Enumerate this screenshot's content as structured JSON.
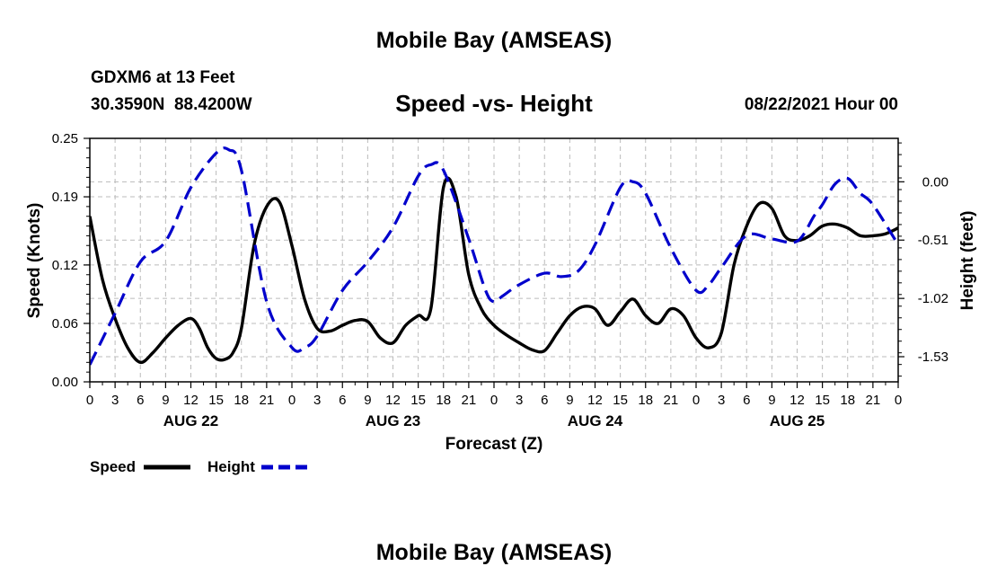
{
  "page_title_top": "Mobile Bay (AMSEAS)",
  "page_title_bottom": "Mobile Bay (AMSEAS)",
  "station": "GDXM6 at 13 Feet",
  "coords": "30.3590N  88.4200W",
  "date_label": "08/22/2021 Hour 00",
  "legend": {
    "speed_label": "Speed",
    "height_label": "Height"
  },
  "colors": {
    "speed": "#000000",
    "height": "#0000cc",
    "grid": "#bbbbbb"
  },
  "chart_data": {
    "type": "line",
    "title": "Speed -vs- Height",
    "xlabel": "Forecast (Z)",
    "ylabel": "Speed (Knots)",
    "y2label": "Height (feet)",
    "xlim": [
      0,
      96
    ],
    "ylim": [
      0,
      0.25
    ],
    "y2lim": [
      -1.75,
      0.38
    ],
    "x_ticks": [
      0,
      3,
      6,
      9,
      12,
      15,
      18,
      21,
      24,
      27,
      30,
      33,
      36,
      39,
      42,
      45,
      48,
      51,
      54,
      57,
      60,
      63,
      66,
      69,
      72,
      75,
      78,
      81,
      84,
      87,
      90,
      93,
      96
    ],
    "x_tick_labels": [
      "0",
      "3",
      "6",
      "9",
      "12",
      "15",
      "18",
      "21",
      "0",
      "3",
      "6",
      "9",
      "12",
      "15",
      "18",
      "21",
      "0",
      "3",
      "6",
      "9",
      "12",
      "15",
      "18",
      "21",
      "0",
      "3",
      "6",
      "9",
      "12",
      "15",
      "18",
      "21",
      "0"
    ],
    "day_labels": [
      {
        "x": 12,
        "label": "AUG 22"
      },
      {
        "x": 36,
        "label": "AUG 23"
      },
      {
        "x": 60,
        "label": "AUG 24"
      },
      {
        "x": 84,
        "label": "AUG 25"
      }
    ],
    "y_ticks": [
      0.0,
      0.06,
      0.12,
      0.19,
      0.25
    ],
    "y_tick_labels": [
      "0.00",
      "0.06",
      "0.12",
      "0.19",
      "0.25"
    ],
    "y2_ticks": [
      -1.53,
      -1.02,
      -0.51,
      0.0
    ],
    "y2_tick_labels": [
      "-1.53",
      "-1.02",
      "-0.51",
      "0.00"
    ],
    "grid": true,
    "series": [
      {
        "name": "Speed",
        "axis": "left",
        "style": "solid",
        "x": [
          0,
          1.5,
          3,
          4.5,
          6,
          7.5,
          9,
          10.5,
          12,
          13,
          14,
          15,
          16,
          17,
          18,
          19.5,
          21,
          22.5,
          24,
          25.5,
          27,
          28.5,
          30,
          31.5,
          33,
          34.5,
          36,
          37.5,
          39,
          40.5,
          42,
          43.5,
          45,
          46.5,
          48,
          49.5,
          51,
          52.5,
          54,
          55.5,
          57,
          58.5,
          60,
          61.5,
          63,
          64.5,
          66,
          67.5,
          69,
          70.5,
          72,
          73.5,
          75,
          76.5,
          78,
          79.5,
          81,
          82.5,
          84,
          85.5,
          87,
          88.5,
          90,
          91.5,
          93,
          94.5,
          96
        ],
        "values": [
          0.17,
          0.105,
          0.065,
          0.035,
          0.02,
          0.03,
          0.045,
          0.058,
          0.065,
          0.055,
          0.035,
          0.024,
          0.023,
          0.03,
          0.055,
          0.14,
          0.18,
          0.185,
          0.14,
          0.085,
          0.055,
          0.052,
          0.058,
          0.063,
          0.062,
          0.045,
          0.04,
          0.058,
          0.068,
          0.075,
          0.2,
          0.19,
          0.11,
          0.075,
          0.058,
          0.048,
          0.04,
          0.033,
          0.032,
          0.05,
          0.068,
          0.077,
          0.075,
          0.058,
          0.072,
          0.085,
          0.068,
          0.06,
          0.075,
          0.068,
          0.045,
          0.035,
          0.05,
          0.12,
          0.16,
          0.183,
          0.178,
          0.15,
          0.145,
          0.15,
          0.16,
          0.162,
          0.158,
          0.15,
          0.15,
          0.152,
          0.158
        ]
      },
      {
        "name": "Height",
        "axis": "right",
        "style": "dashed",
        "x": [
          0,
          3,
          6,
          9,
          12,
          15,
          16.5,
          18,
          21,
          24,
          25.5,
          27,
          30,
          33,
          36,
          39,
          40.5,
          42,
          45,
          47,
          48,
          49,
          51,
          54,
          56,
          58,
          60,
          63,
          64.5,
          66,
          69,
          72,
          73.5,
          75,
          78,
          81,
          84,
          86,
          87,
          88.5,
          90,
          91.5,
          93,
          96
        ],
        "values": [
          -1.6,
          -1.15,
          -0.7,
          -0.52,
          -0.05,
          0.25,
          0.28,
          0.1,
          -1.05,
          -1.45,
          -1.45,
          -1.35,
          -0.95,
          -0.7,
          -0.4,
          0.05,
          0.15,
          0.1,
          -0.5,
          -0.95,
          -1.05,
          -1.0,
          -0.9,
          -0.8,
          -0.83,
          -0.78,
          -0.55,
          -0.05,
          0.0,
          -0.1,
          -0.58,
          -0.95,
          -0.9,
          -0.75,
          -0.47,
          -0.5,
          -0.52,
          -0.3,
          -0.2,
          -0.02,
          0.03,
          -0.1,
          -0.2,
          -0.55
        ]
      }
    ]
  }
}
